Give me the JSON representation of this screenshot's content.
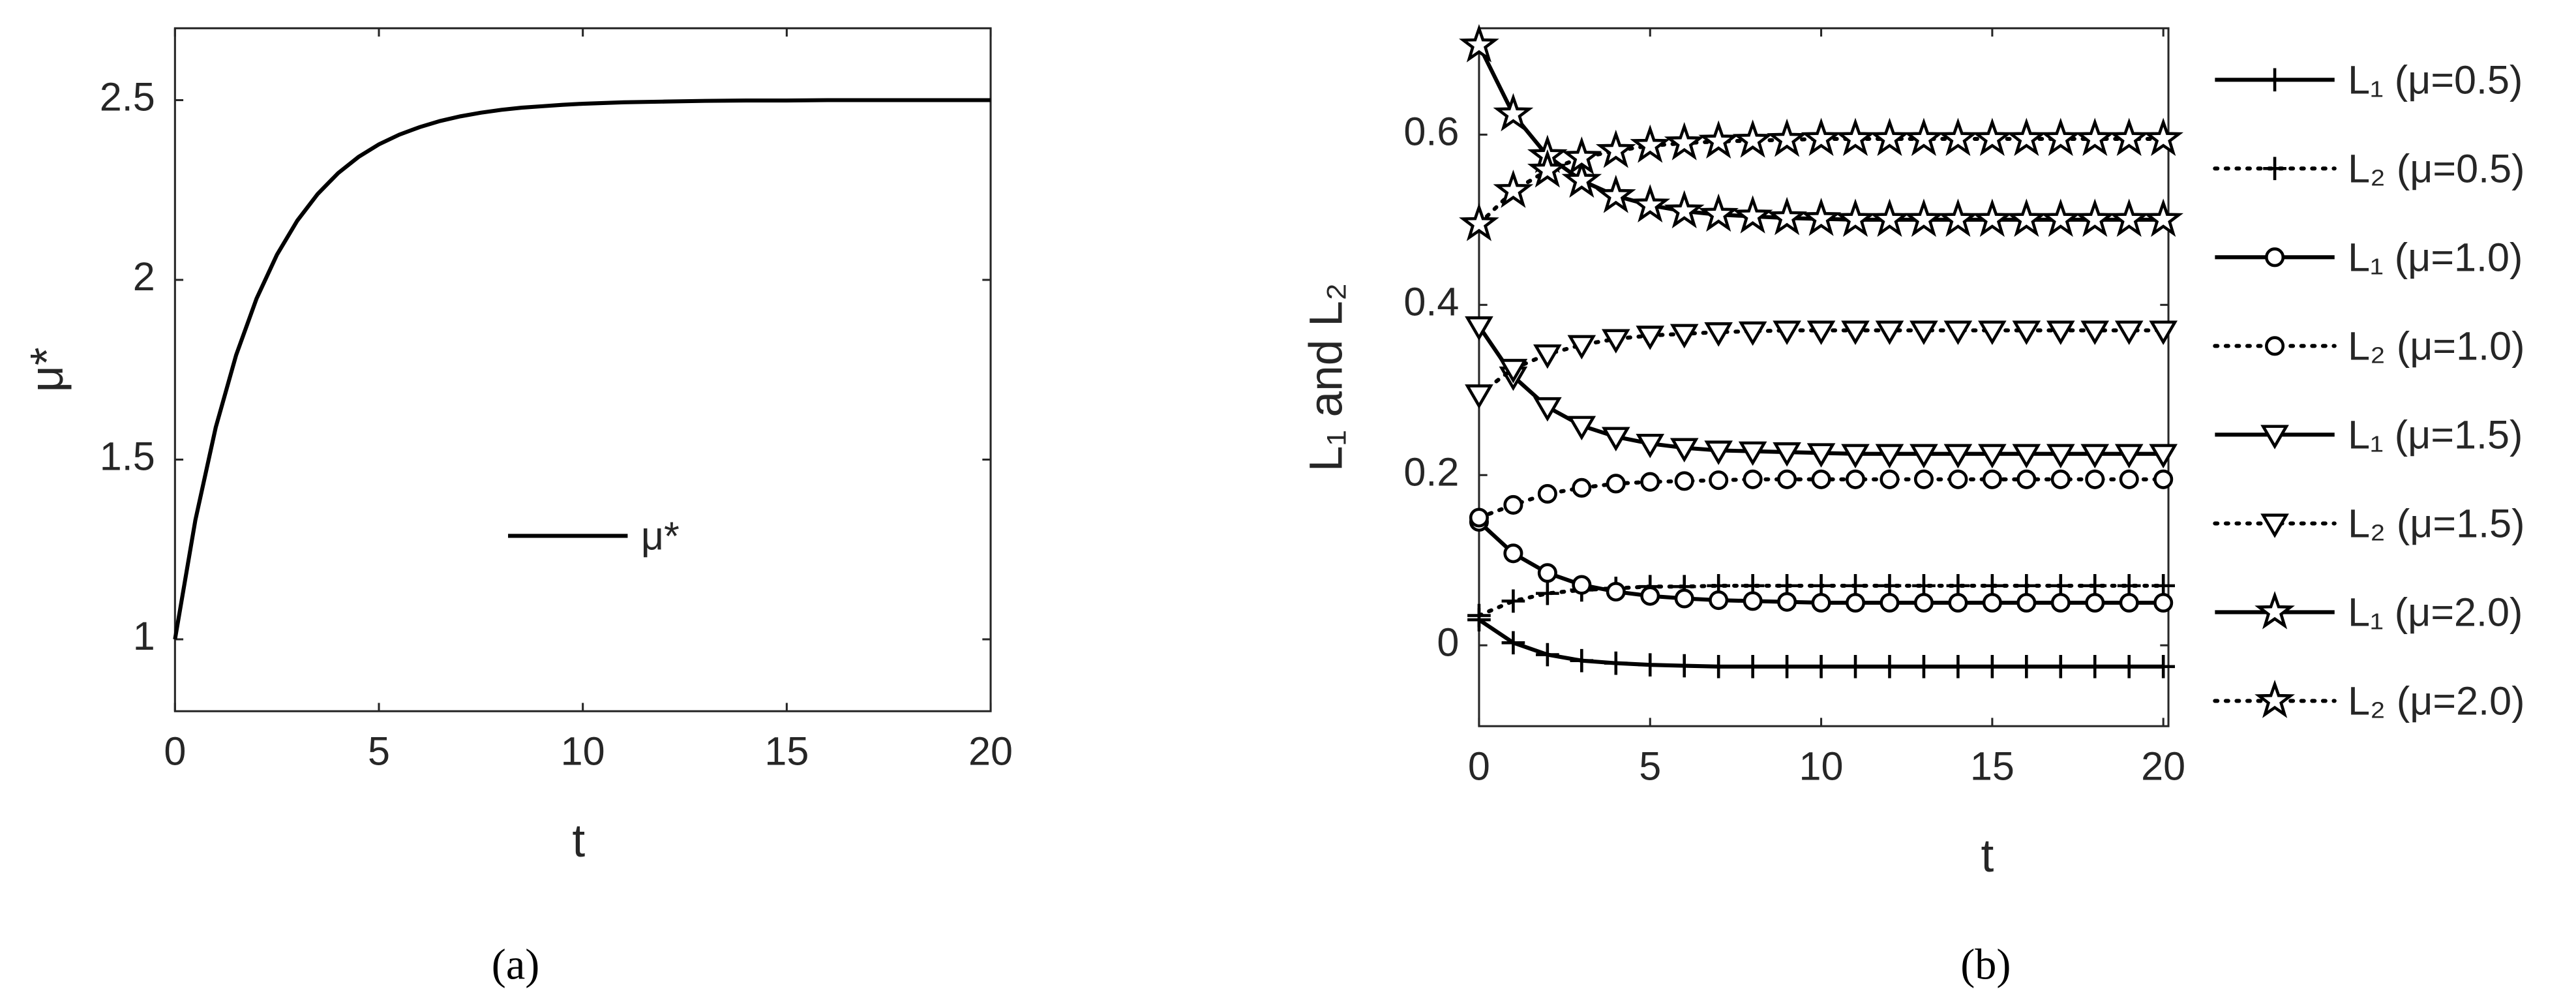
{
  "chart_data": [
    {
      "type": "line",
      "x_label": "t",
      "y_label": "μ*",
      "caption": "(a)",
      "x": [
        0,
        0.5,
        1,
        1.5,
        2,
        2.5,
        3,
        3.5,
        4,
        4.5,
        5,
        5.5,
        6,
        6.5,
        7,
        7.5,
        8,
        8.5,
        9,
        9.5,
        10,
        11,
        12,
        13,
        14,
        15,
        16,
        17,
        18,
        19,
        20
      ],
      "series": [
        {
          "name": "μ*",
          "color": "#000000",
          "dash": "solid",
          "marker": "none",
          "values": [
            1.0,
            1.332,
            1.59,
            1.791,
            1.948,
            2.07,
            2.165,
            2.239,
            2.297,
            2.342,
            2.377,
            2.404,
            2.425,
            2.442,
            2.455,
            2.465,
            2.473,
            2.479,
            2.483,
            2.487,
            2.49,
            2.494,
            2.496,
            2.498,
            2.499,
            2.499,
            2.5,
            2.5,
            2.5,
            2.5,
            2.5
          ]
        }
      ],
      "xlim": [
        0,
        20
      ],
      "ylim": [
        0.8,
        2.7
      ],
      "xticks": [
        0,
        5,
        10,
        15,
        20
      ],
      "yticks": [
        1,
        1.5,
        2,
        2.5
      ],
      "legend_location": "center",
      "box": true
    },
    {
      "type": "line",
      "x_label": "t",
      "y_label": "L₁ and L₂",
      "caption": "(b)",
      "x": [
        0,
        1,
        2,
        3,
        4,
        5,
        6,
        7,
        8,
        9,
        10,
        11,
        12,
        13,
        14,
        15,
        16,
        17,
        18,
        19,
        20
      ],
      "series": [
        {
          "name": "L₁ (μ=0.5)",
          "color": "#000000",
          "dash": "solid",
          "marker": "plus",
          "values": [
            0.03,
            0.003,
            -0.011,
            -0.018,
            -0.021,
            -0.023,
            -0.024,
            -0.025,
            -0.025,
            -0.025,
            -0.025,
            -0.025,
            -0.025,
            -0.025,
            -0.025,
            -0.025,
            -0.025,
            -0.025,
            -0.025,
            -0.025,
            -0.025
          ]
        },
        {
          "name": "L₂ (μ=0.5)",
          "color": "#000000",
          "dash": "dotted",
          "marker": "plus",
          "values": [
            0.035,
            0.052,
            0.061,
            0.065,
            0.067,
            0.069,
            0.069,
            0.07,
            0.07,
            0.07,
            0.07,
            0.07,
            0.07,
            0.07,
            0.07,
            0.07,
            0.07,
            0.07,
            0.07,
            0.07,
            0.07
          ]
        },
        {
          "name": "L₁ (μ=1.0)",
          "color": "#000000",
          "dash": "solid",
          "marker": "circle",
          "values": [
            0.145,
            0.108,
            0.085,
            0.071,
            0.063,
            0.058,
            0.055,
            0.053,
            0.052,
            0.051,
            0.05,
            0.05,
            0.05,
            0.05,
            0.05,
            0.05,
            0.05,
            0.05,
            0.05,
            0.05,
            0.05
          ]
        },
        {
          "name": "L₂ (μ=1.0)",
          "color": "#000000",
          "dash": "dotted",
          "marker": "circle",
          "values": [
            0.15,
            0.165,
            0.178,
            0.185,
            0.19,
            0.192,
            0.193,
            0.194,
            0.195,
            0.195,
            0.195,
            0.195,
            0.195,
            0.195,
            0.195,
            0.195,
            0.195,
            0.195,
            0.195,
            0.195,
            0.195
          ]
        },
        {
          "name": "L₁ (μ=1.5)",
          "color": "#000000",
          "dash": "solid",
          "marker": "triangle-down",
          "values": [
            0.375,
            0.316,
            0.28,
            0.258,
            0.245,
            0.237,
            0.232,
            0.229,
            0.228,
            0.227,
            0.226,
            0.225,
            0.225,
            0.225,
            0.225,
            0.225,
            0.225,
            0.225,
            0.225,
            0.225,
            0.225
          ]
        },
        {
          "name": "L₂ (μ=1.5)",
          "color": "#000000",
          "dash": "dotted",
          "marker": "triangle-down",
          "values": [
            0.295,
            0.325,
            0.342,
            0.353,
            0.36,
            0.364,
            0.366,
            0.368,
            0.369,
            0.37,
            0.37,
            0.37,
            0.37,
            0.37,
            0.37,
            0.37,
            0.37,
            0.37,
            0.37,
            0.37,
            0.37
          ]
        },
        {
          "name": "L₁ (μ=2.0)",
          "color": "#000000",
          "dash": "solid",
          "marker": "star",
          "values": [
            0.705,
            0.624,
            0.575,
            0.546,
            0.528,
            0.517,
            0.51,
            0.506,
            0.504,
            0.502,
            0.501,
            0.5,
            0.5,
            0.5,
            0.5,
            0.5,
            0.5,
            0.5,
            0.5,
            0.5,
            0.5
          ]
        },
        {
          "name": "L₂ (μ=2.0)",
          "color": "#000000",
          "dash": "dotted",
          "marker": "star",
          "values": [
            0.495,
            0.534,
            0.558,
            0.573,
            0.581,
            0.587,
            0.59,
            0.592,
            0.593,
            0.594,
            0.595,
            0.595,
            0.595,
            0.595,
            0.595,
            0.595,
            0.595,
            0.595,
            0.595,
            0.595,
            0.595
          ]
        }
      ],
      "xlim": [
        0,
        20.15
      ],
      "ylim": [
        -0.095,
        0.725
      ],
      "xticks": [
        0,
        5,
        10,
        15,
        20
      ],
      "yticks": [
        0,
        0.2,
        0.4,
        0.6
      ],
      "legend_location": "outside right",
      "box": true
    }
  ]
}
